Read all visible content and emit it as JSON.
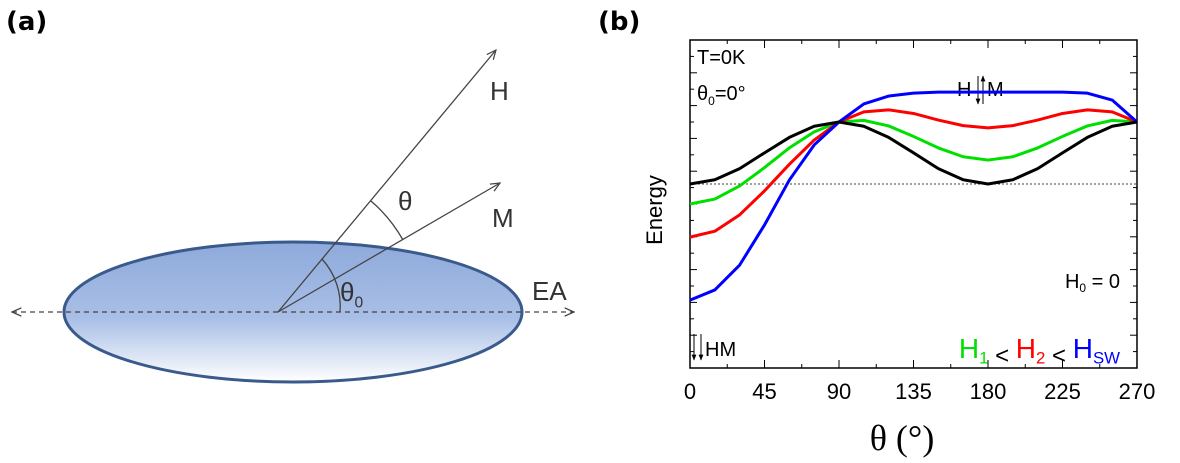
{
  "panel_a": {
    "label": "(a)",
    "h_label": "H",
    "m_label": "M",
    "theta_label": "θ",
    "theta0_label": [
      "θ",
      "0"
    ],
    "ea_label": "EA"
  },
  "chart_data": {
    "type": "line",
    "panel_label": "(b)",
    "x_label": "θ (°)",
    "y_label": "Energy",
    "annotations": {
      "temperature": "T=0K",
      "theta0": [
        "θ",
        "0",
        "=0°"
      ],
      "top_h": "H",
      "top_m": "M",
      "bottom_hm": "HM"
    },
    "legend_separator": "<",
    "x": [
      0,
      15,
      30,
      45,
      60,
      75,
      90,
      105,
      120,
      135,
      150,
      165,
      180,
      195,
      210,
      225,
      240,
      255,
      270
    ],
    "xlim": [
      0,
      270
    ],
    "xticks": [
      0,
      45,
      90,
      135,
      180,
      225,
      270
    ],
    "ylim": [
      0,
      10
    ],
    "reference_line": 5.61,
    "series": [
      {
        "name": "H1",
        "color": "#00e000",
        "values": [
          5.0,
          5.15,
          5.55,
          6.11,
          6.71,
          7.2,
          7.5,
          7.55,
          7.38,
          7.06,
          6.71,
          6.44,
          6.34,
          6.44,
          6.71,
          7.06,
          7.38,
          7.55,
          7.5
        ]
      },
      {
        "name": "H2",
        "color": "#ff0000",
        "values": [
          3.99,
          4.17,
          4.67,
          5.4,
          6.21,
          6.95,
          7.5,
          7.81,
          7.87,
          7.76,
          7.56,
          7.39,
          7.32,
          7.39,
          7.56,
          7.76,
          7.87,
          7.81,
          7.5
        ]
      },
      {
        "name": "HSW",
        "color": "#0000ff",
        "values": [
          2.07,
          2.38,
          3.14,
          4.36,
          5.73,
          6.8,
          7.5,
          8.05,
          8.29,
          8.38,
          8.41,
          8.41,
          8.41,
          8.41,
          8.41,
          8.41,
          8.38,
          8.17,
          7.5
        ]
      },
      {
        "name": "H0 = 0",
        "color": "#000000",
        "values": [
          5.61,
          5.74,
          6.08,
          6.56,
          7.03,
          7.37,
          7.5,
          7.37,
          7.03,
          6.56,
          6.08,
          5.74,
          5.61,
          5.74,
          6.08,
          6.56,
          7.03,
          7.37,
          7.5
        ]
      }
    ]
  }
}
